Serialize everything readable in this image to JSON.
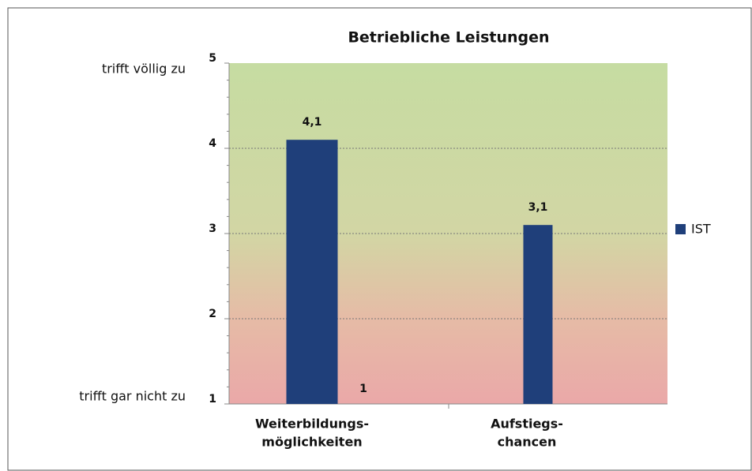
{
  "chart_data": {
    "type": "bar",
    "title": "Betriebliche Leistungen",
    "categories": [
      [
        "Weiterbildungs-",
        "möglichkeiten"
      ],
      [
        "Aufstiegs-",
        "chancen"
      ]
    ],
    "series": [
      {
        "name": "IST",
        "color": "#1f3f7a",
        "values": [
          4.1,
          3.1
        ],
        "value_labels": [
          "4,1",
          "3,1"
        ]
      }
    ],
    "ylim": [
      1,
      5
    ],
    "yticks": [
      1,
      2,
      3,
      4,
      5
    ],
    "grid": true,
    "axis_end_labels": {
      "top": "trifft völlig zu",
      "bottom": "trifft gar nicht zu"
    },
    "annotations": [
      "1"
    ],
    "legend": "right"
  }
}
